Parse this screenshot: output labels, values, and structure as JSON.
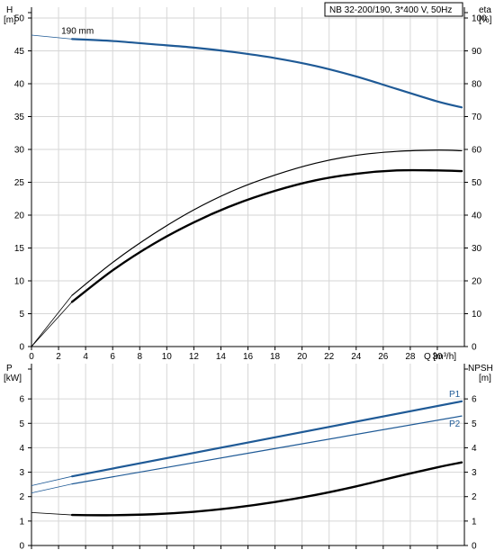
{
  "chart_data": [
    {
      "type": "line",
      "title": "NB 32-200/190, 3*400 V, 50Hz",
      "xlabel": "Q [m³/h]",
      "xlim": [
        0,
        32
      ],
      "xticks": [
        0,
        2,
        4,
        6,
        8,
        10,
        12,
        14,
        16,
        18,
        20,
        22,
        24,
        26,
        28,
        30
      ],
      "ylabel_left": [
        "H",
        "[m]"
      ],
      "ylim_left": [
        0,
        50
      ],
      "yticks_left": [
        0,
        5,
        10,
        15,
        20,
        25,
        30,
        35,
        40,
        45,
        50
      ],
      "ylabel_right": [
        "eta",
        "[%]"
      ],
      "ylim_right": [
        0,
        100
      ],
      "yticks_right": [
        0,
        10,
        20,
        30,
        40,
        50,
        60,
        70,
        80,
        90,
        100
      ],
      "grid": true,
      "annotation": "190 mm",
      "series": [
        {
          "name": "190 mm",
          "axis": "left",
          "color": "#1f5a96",
          "width": 2.2,
          "x": [
            3,
            6,
            9,
            12,
            15,
            18,
            21,
            24,
            27,
            30,
            31.8
          ],
          "y": [
            46.8,
            46.5,
            46.0,
            45.5,
            44.8,
            43.9,
            42.7,
            41.1,
            39.2,
            37.3,
            36.4
          ],
          "dashed_extension": {
            "x": [
              0,
              3
            ],
            "y": [
              47.4,
              46.8
            ]
          }
        },
        {
          "name": "",
          "axis": "left",
          "color": "#000000",
          "width": 1.2,
          "x": [
            3,
            6,
            9,
            12,
            15,
            18,
            21,
            24,
            27,
            30,
            31.8
          ],
          "y": [
            7.8,
            12.8,
            17.1,
            20.8,
            23.8,
            26.1,
            27.9,
            29.1,
            29.7,
            29.9,
            29.8
          ],
          "dashed_extension": {
            "x": [
              0,
              3
            ],
            "y": [
              0,
              7.8
            ]
          }
        },
        {
          "name": "",
          "axis": "left",
          "color": "#000000",
          "width": 2.4,
          "x": [
            3,
            6,
            9,
            12,
            15,
            18,
            21,
            24,
            27,
            30,
            31.8
          ],
          "y": [
            6.8,
            11.6,
            15.6,
            18.9,
            21.6,
            23.7,
            25.3,
            26.3,
            26.8,
            26.8,
            26.7
          ],
          "dashed_extension": {
            "x": [
              0,
              3
            ],
            "y": [
              0,
              6.8
            ]
          }
        }
      ]
    },
    {
      "type": "line",
      "xlim": [
        0,
        32
      ],
      "ylabel_left": [
        "P",
        "[kW]"
      ],
      "ylim_left": [
        0,
        7
      ],
      "yticks_left": [
        0,
        1,
        2,
        3,
        4,
        5,
        6
      ],
      "ylabel_right": [
        "NPSH",
        "[m]"
      ],
      "ylim_right": [
        0,
        7
      ],
      "yticks_right": [
        0,
        1,
        2,
        3,
        4,
        5,
        6
      ],
      "grid": true,
      "series": [
        {
          "name": "P1",
          "axis": "left",
          "color": "#1f5a96",
          "width": 2.2,
          "x": [
            3,
            31.8
          ],
          "y": [
            2.83,
            5.9
          ],
          "dashed_extension": {
            "x": [
              0,
              3
            ],
            "y": [
              2.45,
              2.83
            ]
          }
        },
        {
          "name": "P2",
          "axis": "left",
          "color": "#1f5a96",
          "width": 1.2,
          "x": [
            3,
            31.8
          ],
          "y": [
            2.52,
            5.3
          ],
          "dashed_extension": {
            "x": [
              0,
              3
            ],
            "y": [
              2.15,
              2.52
            ]
          }
        },
        {
          "name": "",
          "axis": "right",
          "color": "#000000",
          "width": 2.4,
          "x": [
            3,
            6,
            9,
            12,
            15,
            18,
            21,
            24,
            27,
            30,
            31.8
          ],
          "y": [
            1.25,
            1.24,
            1.28,
            1.38,
            1.55,
            1.78,
            2.07,
            2.42,
            2.82,
            3.2,
            3.4
          ],
          "dashed_extension": {
            "x": [
              0,
              3
            ],
            "y": [
              1.35,
              1.25
            ]
          }
        }
      ]
    }
  ]
}
